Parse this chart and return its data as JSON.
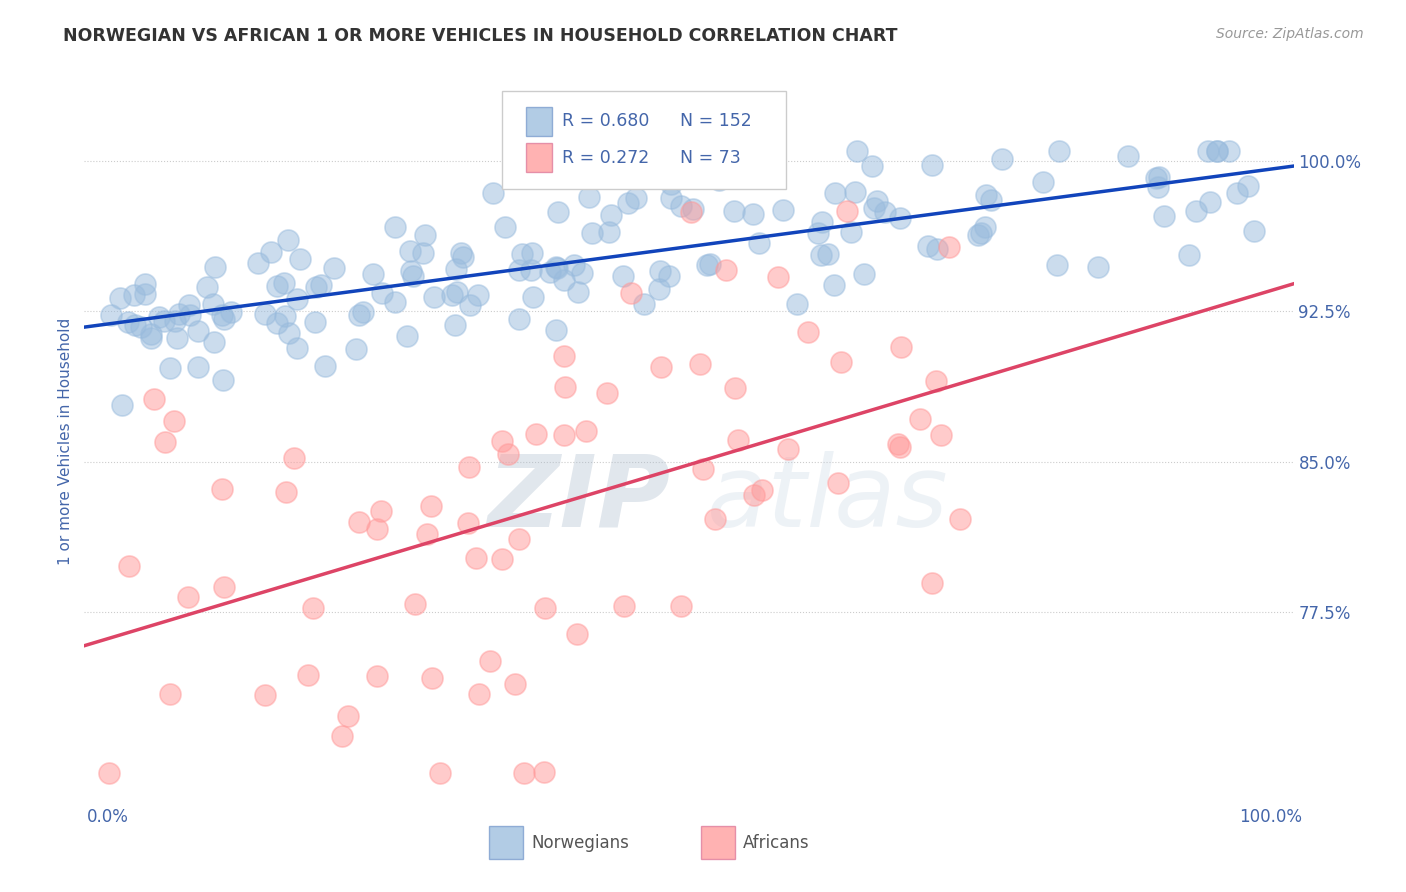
{
  "title": "NORWEGIAN VS AFRICAN 1 OR MORE VEHICLES IN HOUSEHOLD CORRELATION CHART",
  "source": "Source: ZipAtlas.com",
  "ylabel": "1 or more Vehicles in Household",
  "watermark_zip": "ZIP",
  "watermark_atlas": "atlas",
  "xlim": [
    -0.02,
    1.02
  ],
  "ylim": [
    0.68,
    1.04
  ],
  "yticks": [
    0.775,
    0.85,
    0.925,
    1.0
  ],
  "ytick_labels": [
    "77.5%",
    "85.0%",
    "92.5%",
    "100.0%"
  ],
  "xtick_labels": [
    "0.0%",
    "100.0%"
  ],
  "blue_R": 0.68,
  "blue_N": 152,
  "pink_R": 0.272,
  "pink_N": 73,
  "blue_color": "#99BBDD",
  "pink_color": "#FF9999",
  "trend_blue": "#1144BB",
  "trend_pink": "#DD4466",
  "background": "#FFFFFF",
  "title_color": "#333333",
  "axis_label_color": "#4466AA",
  "tick_label_color": "#4466AA",
  "grid_color": "#CCCCCC",
  "legend_color": "#4466AA",
  "source_color": "#999999"
}
